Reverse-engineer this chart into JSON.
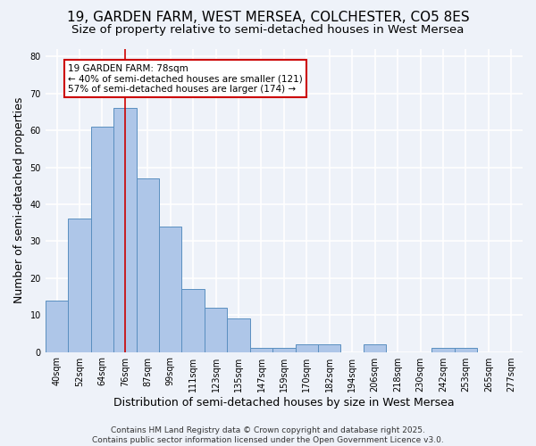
{
  "title": "19, GARDEN FARM, WEST MERSEA, COLCHESTER, CO5 8ES",
  "subtitle": "Size of property relative to semi-detached houses in West Mersea",
  "xlabel": "Distribution of semi-detached houses by size in West Mersea",
  "ylabel": "Number of semi-detached properties",
  "categories": [
    "40sqm",
    "52sqm",
    "64sqm",
    "76sqm",
    "87sqm",
    "99sqm",
    "111sqm",
    "123sqm",
    "135sqm",
    "147sqm",
    "159sqm",
    "170sqm",
    "182sqm",
    "194sqm",
    "206sqm",
    "218sqm",
    "230sqm",
    "242sqm",
    "253sqm",
    "265sqm",
    "277sqm"
  ],
  "values": [
    14,
    36,
    61,
    66,
    47,
    34,
    17,
    12,
    9,
    1,
    1,
    2,
    2,
    0,
    2,
    0,
    0,
    1,
    1,
    0,
    0
  ],
  "bar_color": "#aec6e8",
  "bar_edge_color": "#5a8fc0",
  "highlight_bar_index": 3,
  "highlight_line_color": "#cc0000",
  "annotation_text": "19 GARDEN FARM: 78sqm\n← 40% of semi-detached houses are smaller (121)\n57% of semi-detached houses are larger (174) →",
  "annotation_box_color": "#ffffff",
  "annotation_box_edge": "#cc0000",
  "ylim": [
    0,
    82
  ],
  "yticks": [
    0,
    10,
    20,
    30,
    40,
    50,
    60,
    70,
    80
  ],
  "footer": "Contains HM Land Registry data © Crown copyright and database right 2025.\nContains public sector information licensed under the Open Government Licence v3.0.",
  "bg_color": "#eef2f9",
  "grid_color": "#ffffff",
  "title_fontsize": 11,
  "subtitle_fontsize": 9.5,
  "label_fontsize": 9,
  "tick_fontsize": 7,
  "footer_fontsize": 6.5,
  "annotation_fontsize": 7.5
}
